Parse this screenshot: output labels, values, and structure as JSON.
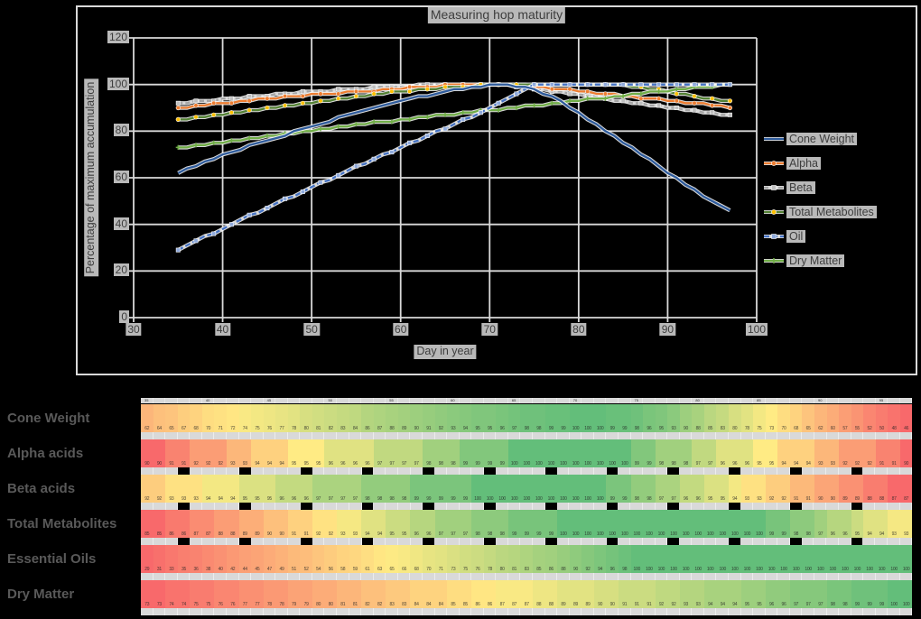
{
  "page": {
    "background_color": "#000000"
  },
  "chart_data": [
    {
      "type": "line",
      "title": "Measuring hop maturity",
      "xlabel": "Day in year",
      "ylabel": "Percentage of maximum accumulation",
      "xlim": [
        30,
        100
      ],
      "ylim": [
        0,
        120
      ],
      "x_ticks": [
        30,
        40,
        50,
        60,
        70,
        80,
        90,
        100
      ],
      "y_ticks": [
        0,
        20,
        40,
        60,
        80,
        100,
        120
      ],
      "grid": true,
      "legend_position": "right",
      "gridline_color": "#D9D9D9",
      "label_chip_color": "#C9C9C9",
      "text_color": "#3D3D3D",
      "x": [
        35,
        36,
        37,
        38,
        39,
        40,
        41,
        42,
        43,
        44,
        45,
        46,
        47,
        48,
        49,
        50,
        51,
        52,
        53,
        54,
        55,
        56,
        57,
        58,
        59,
        60,
        61,
        62,
        63,
        64,
        65,
        66,
        67,
        68,
        69,
        70,
        71,
        72,
        73,
        74,
        75,
        76,
        77,
        78,
        79,
        80,
        81,
        82,
        83,
        84,
        85,
        86,
        87,
        88,
        89,
        90,
        91,
        92,
        93,
        94,
        95,
        96,
        97
      ],
      "series": [
        {
          "name": "Cone Weight",
          "color": "#2E5B9C",
          "marker": "none",
          "marker_color": "#2E5B9C",
          "dash": "",
          "values": [
            62,
            64,
            65,
            67,
            68,
            70,
            71,
            72,
            74,
            75,
            76,
            77,
            78,
            80,
            81,
            82,
            83,
            84,
            86,
            87,
            88,
            89,
            90,
            91,
            92,
            93,
            94,
            95,
            95,
            96,
            97,
            98,
            98,
            99,
            99,
            100,
            100,
            100,
            99,
            99,
            98,
            96,
            95,
            93,
            90,
            88,
            85,
            83,
            80,
            78,
            75,
            73,
            70,
            68,
            65,
            62,
            60,
            57,
            55,
            52,
            50,
            48,
            46
          ]
        },
        {
          "name": "Alpha",
          "color": "#ED7D31",
          "marker": "circle",
          "marker_color": "#ED7D31",
          "dash": "",
          "values": [
            90,
            90,
            91,
            91,
            92,
            92,
            92,
            93,
            93,
            94,
            94,
            94,
            95,
            95,
            95,
            96,
            96,
            96,
            96,
            97,
            97,
            97,
            97,
            98,
            98,
            98,
            99,
            99,
            99,
            99,
            100,
            100,
            100,
            100,
            100,
            100,
            100,
            100,
            100,
            100,
            99,
            99,
            98,
            98,
            98,
            97,
            97,
            96,
            96,
            96,
            95,
            95,
            94,
            94,
            94,
            93,
            93,
            92,
            92,
            92,
            91,
            91,
            90
          ]
        },
        {
          "name": "Beta",
          "color": "#A5A5A5",
          "marker": "square",
          "marker_color": "#BFBFBF",
          "dash": "5 3",
          "values": [
            92,
            92,
            93,
            93,
            93,
            94,
            94,
            94,
            95,
            95,
            95,
            96,
            96,
            96,
            97,
            97,
            97,
            97,
            98,
            98,
            98,
            98,
            99,
            99,
            99,
            99,
            99,
            100,
            100,
            100,
            100,
            100,
            100,
            100,
            100,
            100,
            100,
            100,
            99,
            99,
            98,
            98,
            97,
            97,
            96,
            96,
            95,
            95,
            94,
            93,
            93,
            92,
            92,
            91,
            91,
            90,
            90,
            89,
            89,
            88,
            88,
            87,
            87
          ]
        },
        {
          "name": "Total Metabolites",
          "color": "#548235",
          "marker": "circle",
          "marker_color": "#FFC000",
          "dash": "",
          "values": [
            85,
            85,
            86,
            86,
            87,
            87,
            88,
            88,
            89,
            89,
            90,
            90,
            91,
            91,
            92,
            92,
            93,
            93,
            94,
            94,
            95,
            95,
            96,
            96,
            97,
            97,
            97,
            98,
            98,
            98,
            99,
            99,
            99,
            99,
            100,
            100,
            100,
            100,
            100,
            100,
            100,
            100,
            100,
            100,
            100,
            100,
            100,
            100,
            100,
            100,
            100,
            99,
            99,
            98,
            98,
            97,
            96,
            96,
            95,
            94,
            94,
            93,
            93
          ]
        },
        {
          "name": "Oil",
          "color": "#4472C4",
          "marker": "square",
          "marker_color": "#8FAADC",
          "dash": "6 3",
          "values": [
            29,
            31,
            33,
            35,
            36,
            38,
            40,
            42,
            44,
            45,
            47,
            49,
            51,
            52,
            54,
            56,
            58,
            59,
            61,
            63,
            65,
            66,
            68,
            70,
            71,
            73,
            75,
            76,
            78,
            80,
            81,
            83,
            85,
            86,
            88,
            90,
            92,
            94,
            96,
            98,
            100,
            100,
            100,
            100,
            100,
            100,
            100,
            100,
            100,
            100,
            100,
            100,
            100,
            100,
            100,
            100,
            100,
            100,
            100,
            100,
            100,
            100,
            100
          ]
        },
        {
          "name": "Dry Matter",
          "color": "#70AD47",
          "marker": "plus",
          "marker_color": "#70AD47",
          "dash": "",
          "values": [
            73,
            73,
            74,
            74,
            75,
            75,
            76,
            76,
            77,
            77,
            78,
            78,
            79,
            79,
            80,
            80,
            81,
            81,
            82,
            82,
            83,
            83,
            84,
            84,
            84,
            85,
            85,
            86,
            86,
            87,
            87,
            87,
            88,
            88,
            89,
            89,
            89,
            90,
            90,
            91,
            91,
            91,
            92,
            92,
            93,
            93,
            94,
            94,
            94,
            95,
            95,
            96,
            96,
            97,
            97,
            97,
            98,
            98,
            99,
            99,
            99,
            100,
            100
          ]
        }
      ]
    },
    {
      "type": "heatmap",
      "row_labels": [
        "Cone Weight",
        "Alpha acids",
        "Beta acids",
        "Total Metabolites",
        "Essential Oils",
        "Dry Matter"
      ],
      "columns_days": {
        "from": 35,
        "to": 97,
        "step": 1
      },
      "series_ref": [
        0,
        1,
        2,
        3,
        4,
        5
      ],
      "note": "Cell values are the same per-day percentages as chart_data.0.series; each row is color-scaled from its own min to max.",
      "colorscale": {
        "min": "#F8696B",
        "mid": "#FFEB84",
        "max": "#63BE7A"
      },
      "spacer_color": "#D9D9D9",
      "label_color": "#595959",
      "header_days_labelled_every": 5
    }
  ]
}
